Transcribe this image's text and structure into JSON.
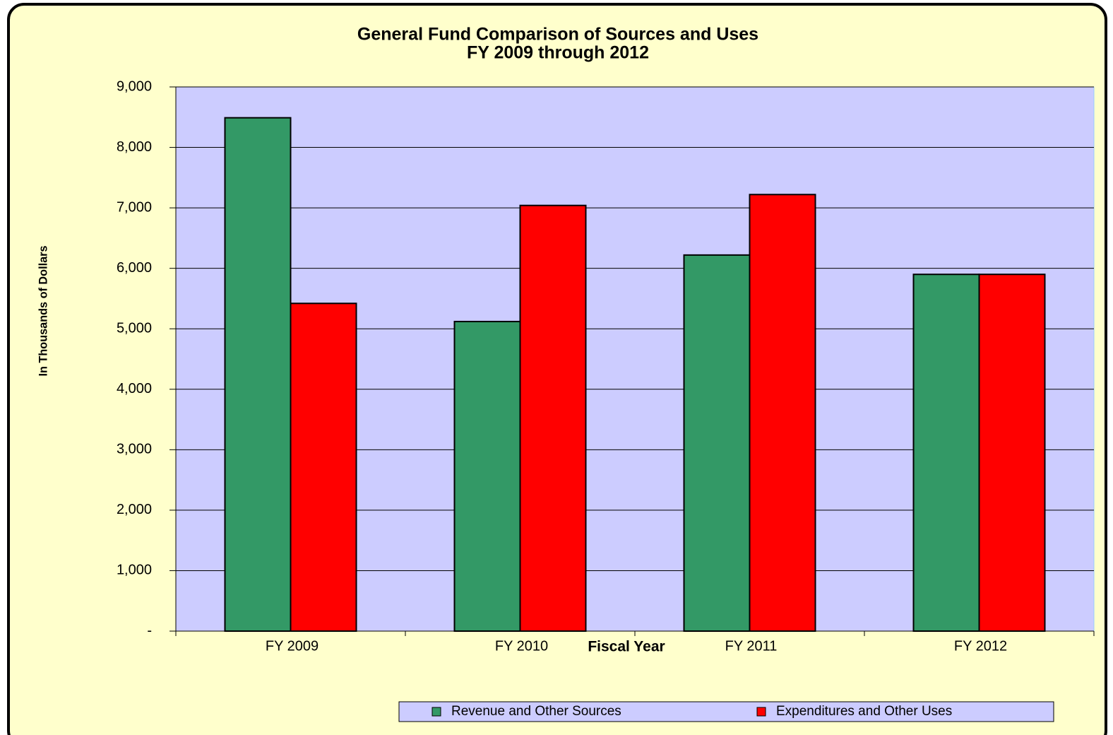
{
  "chart_data": {
    "type": "bar",
    "title": [
      "General Fund Comparison of Sources and Uses",
      "FY 2009 through 2012"
    ],
    "x_label": "Fiscal Year",
    "y_label": "In Thousands of Dollars",
    "categories": [
      "FY 2009",
      "FY 2010",
      "FY 2011",
      "FY 2012"
    ],
    "series": [
      {
        "name": "Revenue and Other Sources",
        "color": "#339966",
        "values": [
          8490,
          5120,
          6220,
          5900
        ]
      },
      {
        "name": "Expenditures and Other Uses",
        "color": "#ff0000",
        "values": [
          5420,
          7040,
          7220,
          5900
        ]
      }
    ],
    "ylim": [
      0,
      9000
    ],
    "yticks": [
      {
        "value": 0,
        "label": "-"
      },
      {
        "value": 1000,
        "label": "1,000"
      },
      {
        "value": 2000,
        "label": "2,000"
      },
      {
        "value": 3000,
        "label": "3,000"
      },
      {
        "value": 4000,
        "label": "4,000"
      },
      {
        "value": 5000,
        "label": "5,000"
      },
      {
        "value": 6000,
        "label": "6,000"
      },
      {
        "value": 7000,
        "label": "7,000"
      },
      {
        "value": 8000,
        "label": "8,000"
      },
      {
        "value": 9000,
        "label": "9,000"
      }
    ],
    "grid": true,
    "legend": "bottom"
  }
}
